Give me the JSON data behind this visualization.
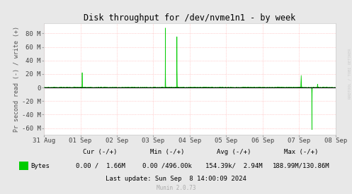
{
  "title": "Disk throughput for /dev/nvme1n1 - by week",
  "ylabel": "Pr second read (-) / write (+)",
  "bg_color": "#e8e8e8",
  "plot_bg_color": "#ffffff",
  "grid_color": "#ffaaaa",
  "line_color": "#00cc00",
  "x_labels": [
    "31 Aug",
    "01 Sep",
    "02 Sep",
    "03 Sep",
    "04 Sep",
    "05 Sep",
    "06 Sep",
    "07 Sep",
    "08 Sep"
  ],
  "ylim_low": -70000000,
  "ylim_high": 95000000,
  "yticks": [
    -60000000,
    -40000000,
    -20000000,
    0,
    20000000,
    40000000,
    60000000,
    80000000
  ],
  "ytick_labels": [
    "-60 M",
    "-40 M",
    "-20 M",
    "0",
    "20 M",
    "40 M",
    "60 M",
    "80 M"
  ],
  "legend_label": "Bytes",
  "legend_color": "#00cc00",
  "cur_label": "Cur (-/+)",
  "min_label": "Min (-/+)",
  "avg_label": "Avg (-/+)",
  "max_label": "Max (-/+)",
  "bytes_label": "Bytes",
  "cur_val": "0.00 /  1.66M",
  "min_val": "0.00 /496.00k",
  "avg_val": "154.39k/  2.94M",
  "max_val": "188.99M/130.86M",
  "last_update": "Last update: Sun Sep  8 14:00:09 2024",
  "munin_version": "Munin 2.0.73",
  "watermark": "RRDTOOL / TOBI OETIKER",
  "num_points": 2016
}
